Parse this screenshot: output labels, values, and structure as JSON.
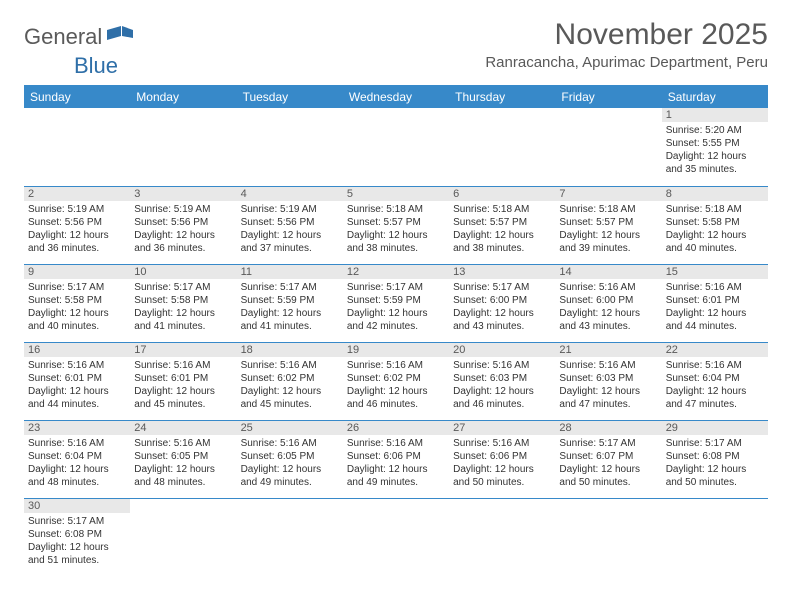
{
  "logo": {
    "general": "General",
    "blue": "Blue"
  },
  "title": "November 2025",
  "location": "Ranracancha, Apurimac Department, Peru",
  "colors": {
    "header_bg": "#3789c9",
    "header_text": "#ffffff",
    "daynum_bg": "#e8e8e8",
    "text": "#595959",
    "border": "#3789c9"
  },
  "weekdays": [
    "Sunday",
    "Monday",
    "Tuesday",
    "Wednesday",
    "Thursday",
    "Friday",
    "Saturday"
  ],
  "days": {
    "1": {
      "sunrise": "5:20 AM",
      "sunset": "5:55 PM",
      "daylight": "12 hours and 35 minutes."
    },
    "2": {
      "sunrise": "5:19 AM",
      "sunset": "5:56 PM",
      "daylight": "12 hours and 36 minutes."
    },
    "3": {
      "sunrise": "5:19 AM",
      "sunset": "5:56 PM",
      "daylight": "12 hours and 36 minutes."
    },
    "4": {
      "sunrise": "5:19 AM",
      "sunset": "5:56 PM",
      "daylight": "12 hours and 37 minutes."
    },
    "5": {
      "sunrise": "5:18 AM",
      "sunset": "5:57 PM",
      "daylight": "12 hours and 38 minutes."
    },
    "6": {
      "sunrise": "5:18 AM",
      "sunset": "5:57 PM",
      "daylight": "12 hours and 38 minutes."
    },
    "7": {
      "sunrise": "5:18 AM",
      "sunset": "5:57 PM",
      "daylight": "12 hours and 39 minutes."
    },
    "8": {
      "sunrise": "5:18 AM",
      "sunset": "5:58 PM",
      "daylight": "12 hours and 40 minutes."
    },
    "9": {
      "sunrise": "5:17 AM",
      "sunset": "5:58 PM",
      "daylight": "12 hours and 40 minutes."
    },
    "10": {
      "sunrise": "5:17 AM",
      "sunset": "5:58 PM",
      "daylight": "12 hours and 41 minutes."
    },
    "11": {
      "sunrise": "5:17 AM",
      "sunset": "5:59 PM",
      "daylight": "12 hours and 41 minutes."
    },
    "12": {
      "sunrise": "5:17 AM",
      "sunset": "5:59 PM",
      "daylight": "12 hours and 42 minutes."
    },
    "13": {
      "sunrise": "5:17 AM",
      "sunset": "6:00 PM",
      "daylight": "12 hours and 43 minutes."
    },
    "14": {
      "sunrise": "5:16 AM",
      "sunset": "6:00 PM",
      "daylight": "12 hours and 43 minutes."
    },
    "15": {
      "sunrise": "5:16 AM",
      "sunset": "6:01 PM",
      "daylight": "12 hours and 44 minutes."
    },
    "16": {
      "sunrise": "5:16 AM",
      "sunset": "6:01 PM",
      "daylight": "12 hours and 44 minutes."
    },
    "17": {
      "sunrise": "5:16 AM",
      "sunset": "6:01 PM",
      "daylight": "12 hours and 45 minutes."
    },
    "18": {
      "sunrise": "5:16 AM",
      "sunset": "6:02 PM",
      "daylight": "12 hours and 45 minutes."
    },
    "19": {
      "sunrise": "5:16 AM",
      "sunset": "6:02 PM",
      "daylight": "12 hours and 46 minutes."
    },
    "20": {
      "sunrise": "5:16 AM",
      "sunset": "6:03 PM",
      "daylight": "12 hours and 46 minutes."
    },
    "21": {
      "sunrise": "5:16 AM",
      "sunset": "6:03 PM",
      "daylight": "12 hours and 47 minutes."
    },
    "22": {
      "sunrise": "5:16 AM",
      "sunset": "6:04 PM",
      "daylight": "12 hours and 47 minutes."
    },
    "23": {
      "sunrise": "5:16 AM",
      "sunset": "6:04 PM",
      "daylight": "12 hours and 48 minutes."
    },
    "24": {
      "sunrise": "5:16 AM",
      "sunset": "6:05 PM",
      "daylight": "12 hours and 48 minutes."
    },
    "25": {
      "sunrise": "5:16 AM",
      "sunset": "6:05 PM",
      "daylight": "12 hours and 49 minutes."
    },
    "26": {
      "sunrise": "5:16 AM",
      "sunset": "6:06 PM",
      "daylight": "12 hours and 49 minutes."
    },
    "27": {
      "sunrise": "5:16 AM",
      "sunset": "6:06 PM",
      "daylight": "12 hours and 50 minutes."
    },
    "28": {
      "sunrise": "5:17 AM",
      "sunset": "6:07 PM",
      "daylight": "12 hours and 50 minutes."
    },
    "29": {
      "sunrise": "5:17 AM",
      "sunset": "6:08 PM",
      "daylight": "12 hours and 50 minutes."
    },
    "30": {
      "sunrise": "5:17 AM",
      "sunset": "6:08 PM",
      "daylight": "12 hours and 51 minutes."
    }
  },
  "labels": {
    "sunrise": "Sunrise: ",
    "sunset": "Sunset: ",
    "daylight": "Daylight: "
  },
  "grid": [
    [
      null,
      null,
      null,
      null,
      null,
      null,
      "1"
    ],
    [
      "2",
      "3",
      "4",
      "5",
      "6",
      "7",
      "8"
    ],
    [
      "9",
      "10",
      "11",
      "12",
      "13",
      "14",
      "15"
    ],
    [
      "16",
      "17",
      "18",
      "19",
      "20",
      "21",
      "22"
    ],
    [
      "23",
      "24",
      "25",
      "26",
      "27",
      "28",
      "29"
    ],
    [
      "30",
      null,
      null,
      null,
      null,
      null,
      null
    ]
  ]
}
